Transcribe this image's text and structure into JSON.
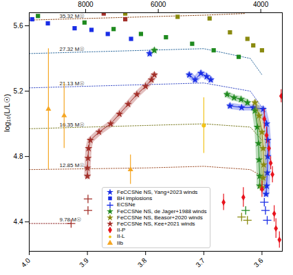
{
  "chart_data": {
    "type": "scatter",
    "ylabel": "log₁₀(L/L☉)",
    "xlim": [
      4.0,
      3.565
    ],
    "ylim": [
      4.22,
      5.68
    ],
    "xticks": [
      {
        "value": 4.0,
        "label": "4.0"
      },
      3.9,
      3.8,
      3.7,
      3.6
    ],
    "yticks": [
      4.4,
      4.8,
      5.2,
      5.6
    ],
    "x2ticks": [
      {
        "value": 3.9031,
        "label": "8000"
      },
      {
        "value": 3.7782,
        "label": "6000"
      },
      {
        "value": 3.6021,
        "label": "4000"
      }
    ],
    "tracks": [
      {
        "name": "35.32 M☉",
        "color": "#8b4513",
        "line_style": "dotted",
        "x": [
          4.0,
          3.9,
          3.8,
          3.7,
          3.63
        ],
        "y": [
          5.635,
          5.645,
          5.655,
          5.665,
          5.675
        ]
      },
      {
        "name": "27.32 M☉",
        "color": "#2e6b9e",
        "line_style": "dotted",
        "x": [
          4.0,
          3.9,
          3.8,
          3.7,
          3.62,
          3.6
        ],
        "y": [
          5.43,
          5.44,
          5.45,
          5.46,
          5.4,
          5.3
        ]
      },
      {
        "name": "21.13 M☉",
        "color": "#3c50c8",
        "line_style": "dotted",
        "x": [
          4.0,
          3.9,
          3.8,
          3.7,
          3.62,
          3.6
        ],
        "y": [
          5.22,
          5.23,
          5.24,
          5.25,
          5.2,
          5.1
        ]
      },
      {
        "name": "16.35 M☉",
        "color": "#7a7a20",
        "line_style": "dotted",
        "x": [
          4.0,
          3.9,
          3.8,
          3.7,
          3.62,
          3.6
        ],
        "y": [
          4.97,
          4.98,
          4.99,
          5.0,
          4.98,
          4.9
        ]
      },
      {
        "name": "12.85 M☉",
        "color": "#a0522d",
        "line_style": "dotted",
        "x": [
          4.0,
          3.9,
          3.8,
          3.7,
          3.62,
          3.6
        ],
        "y": [
          4.72,
          4.725,
          4.73,
          4.74,
          4.72,
          4.68
        ]
      },
      {
        "name": "9.78 M☉",
        "color": "#8b2020",
        "line_style": "dotted",
        "x": [
          4.0,
          3.96,
          3.928
        ],
        "y": [
          4.39,
          4.39,
          4.39
        ]
      }
    ],
    "series": [
      {
        "name": "FeCCSNe NS, Yang+2023 winds",
        "type": "band",
        "marker": "star",
        "color": "#1a2ee6",
        "x": [
          3.793,
          null,
          3.725,
          3.715,
          3.705,
          3.695,
          3.688,
          null,
          3.655,
          3.635,
          3.615,
          3.598,
          3.592,
          3.59,
          3.59,
          3.591,
          3.592,
          3.593
        ],
        "y": [
          5.43,
          null,
          5.3,
          5.27,
          5.31,
          5.29,
          5.27,
          null,
          5.11,
          5.1,
          5.1,
          5.09,
          5.0,
          4.9,
          4.8,
          4.7,
          4.62,
          4.57
        ]
      },
      {
        "name": "BH implosions",
        "type": "scatter",
        "marker": "square",
        "color": "#1a2ee6",
        "x": [
          3.995,
          3.968,
          3.922,
          3.893,
          3.865,
          3.825,
          3.985,
          3.905,
          3.855,
          3.808,
          3.765,
          3.72,
          3.683,
          3.64,
          3.835,
          3.745,
          3.69,
          3.655,
          3.625,
          3.615,
          3.6,
          3.872,
          3.835
        ],
        "y": [
          5.64,
          5.615,
          5.585,
          5.575,
          5.55,
          5.52,
          5.66,
          5.62,
          5.58,
          5.55,
          5.53,
          5.49,
          5.45,
          5.41,
          5.675,
          5.655,
          5.645,
          5.56,
          5.52,
          5.48,
          5.45,
          5.675,
          5.64
        ],
        "colors": [
          "#1a2ee6",
          "#1a2ee6",
          "#1a2ee6",
          "#1a2ee6",
          "#1a2ee6",
          "#1a2ee6",
          "#1f8a1f",
          "#1f8a1f",
          "#1f8a1f",
          "#1f8a1f",
          "#1f8a1f",
          "#1f8a1f",
          "#1f8a1f",
          "#1f8a1f",
          "#8a8a10",
          "#8a8a10",
          "#8a8a10",
          "#8a8a10",
          "#8a8a10",
          "#8a8a10",
          "#8a8a10",
          "#a3302a",
          "#a3302a"
        ]
      },
      {
        "name": "ECSNe",
        "type": "scatter",
        "marker": "plus",
        "color": "#1a2ee6",
        "x": [
          3.928,
          3.899,
          3.899,
          3.628,
          3.635,
          3.625,
          3.596,
          3.594,
          3.591
        ],
        "y": [
          4.39,
          4.54,
          4.47,
          4.47,
          4.43,
          4.41,
          4.52,
          4.47,
          4.41
        ],
        "colors": [
          "#a3302a",
          "#a3302a",
          "#a3302a",
          "#1f8a1f",
          "#8a8a10",
          "#8a8a10",
          "#1a2ee6",
          "#1a2ee6",
          "#1a2ee6"
        ]
      },
      {
        "name": "FeCCSNe NS, de Jager+1988 winds",
        "type": "band",
        "marker": "star",
        "color": "#1f8a1f",
        "x": [
          3.785,
          null,
          3.66,
          3.648,
          3.636,
          3.625,
          null,
          3.612,
          3.608,
          3.606,
          3.605,
          3.604,
          3.604
        ],
        "y": [
          5.45,
          null,
          5.18,
          5.16,
          5.15,
          5.13,
          null,
          5.08,
          4.98,
          4.88,
          4.78,
          4.68,
          4.62
        ]
      },
      {
        "name": "FeCCSNe NS, Beasor+2020 winds",
        "type": "band",
        "marker": "star",
        "color": "#8a8a10",
        "x": [
          3.612,
          3.605,
          3.6,
          3.598,
          3.597,
          3.598,
          3.6
        ],
        "y": [
          5.13,
          5.05,
          4.95,
          4.85,
          4.75,
          4.67,
          4.61
        ]
      },
      {
        "name": "FeCCSNe NS, Kee+2021 winds",
        "type": "band",
        "marker": "star",
        "color": "#a3302a",
        "x": [
          3.9,
          3.9,
          3.899,
          3.898,
          3.895,
          3.88,
          3.86,
          3.845,
          3.83,
          3.815,
          3.8,
          3.79,
          3.785
        ],
        "y": [
          4.68,
          4.73,
          4.79,
          4.85,
          4.9,
          4.95,
          5.0,
          5.06,
          5.12,
          5.18,
          5.23,
          5.27,
          5.3
        ]
      },
      {
        "name": "II-P",
        "type": "errorbar",
        "marker": "diamond",
        "color": "#e8141e",
        "x": [
          3.567,
          3.596,
          3.592,
          3.588,
          3.585,
          3.582,
          3.632,
          3.666,
          3.579,
          3.576,
          3.57,
          3.6
        ],
        "y": [
          5.17,
          5.03,
          4.93,
          4.85,
          4.76,
          4.69,
          4.55,
          4.52,
          4.45,
          4.36,
          4.29,
          4.6
        ],
        "yerr": [
          0.04,
          0.06,
          0.05,
          0.05,
          0.04,
          0.05,
          0.06,
          0.05,
          0.05,
          0.06,
          0.05,
          0.05
        ]
      },
      {
        "name": "II-L",
        "type": "errorbar",
        "marker": "circle",
        "color": "#f2c318",
        "x": [
          3.7
        ],
        "y": [
          4.99
        ],
        "yerr": [
          0.17
        ]
      },
      {
        "name": "IIb",
        "type": "errorbar",
        "marker": "triangle",
        "color": "#f5a623",
        "x": [
          3.967,
          3.94,
          3.826
        ],
        "y": [
          5.09,
          5.05,
          4.72
        ],
        "yerr": [
          0.37,
          0.2,
          0.09
        ]
      }
    ]
  }
}
